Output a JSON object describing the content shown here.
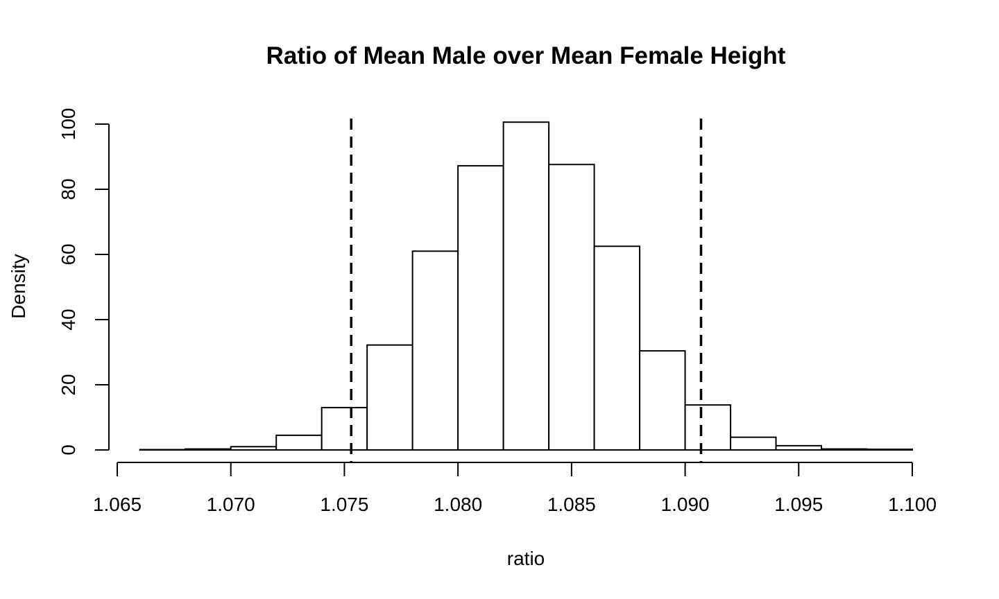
{
  "chart_data": {
    "type": "bar",
    "subtype": "histogram",
    "title": "Ratio of Mean Male over Mean Female Height",
    "xlabel": "ratio",
    "ylabel": "Density",
    "xlim": [
      1.065,
      1.1
    ],
    "ylim": [
      0,
      100
    ],
    "x_ticks": [
      "1.065",
      "1.070",
      "1.075",
      "1.080",
      "1.085",
      "1.090",
      "1.095",
      "1.100"
    ],
    "y_ticks": [
      "0",
      "20",
      "40",
      "60",
      "80",
      "100"
    ],
    "bin_edges": [
      1.066,
      1.068,
      1.07,
      1.072,
      1.074,
      1.076,
      1.078,
      1.08,
      1.082,
      1.084,
      1.086,
      1.088,
      1.09,
      1.092,
      1.094,
      1.096,
      1.098,
      1.1
    ],
    "values": [
      0.1,
      0.3,
      1.0,
      4.5,
      13.0,
      32.2,
      61.0,
      87.2,
      100.6,
      87.6,
      62.5,
      30.4,
      13.8,
      3.9,
      1.3,
      0.3,
      0.2
    ],
    "reference_lines": [
      {
        "x": 1.0753,
        "style": "dashed"
      },
      {
        "x": 1.0907,
        "style": "dashed"
      }
    ],
    "grid": false,
    "legend": "none",
    "bar_fill": "#ffffff",
    "bar_stroke": "#000000"
  }
}
